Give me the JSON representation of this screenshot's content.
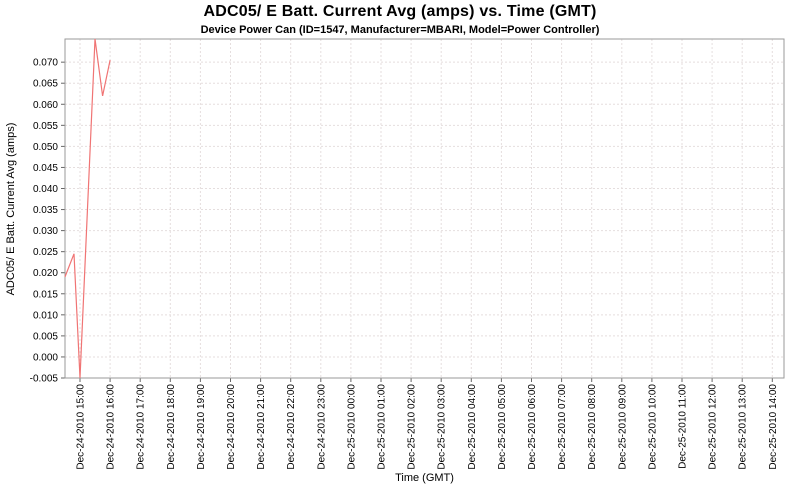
{
  "chart_data": {
    "type": "line",
    "title": "ADC05/ E Batt. Current Avg (amps) vs. Time (GMT)",
    "subtitle": "Device Power Can (ID=1547, Manufacturer=MBARI, Model=Power Controller)",
    "xlabel": "Time (GMT)",
    "ylabel": "ADC05/ E Batt. Current Avg (amps)",
    "ylim": [
      -0.005,
      0.0755
    ],
    "y_ticks": [
      "-0.005",
      "0.000",
      "0.005",
      "0.010",
      "0.015",
      "0.020",
      "0.025",
      "0.030",
      "0.035",
      "0.040",
      "0.045",
      "0.050",
      "0.055",
      "0.060",
      "0.065",
      "0.070"
    ],
    "x_ticks": [
      "Dec-24-2010 15:00",
      "Dec-24-2010 16:00",
      "Dec-24-2010 17:00",
      "Dec-24-2010 18:00",
      "Dec-24-2010 19:00",
      "Dec-24-2010 20:00",
      "Dec-24-2010 21:00",
      "Dec-24-2010 22:00",
      "Dec-24-2010 23:00",
      "Dec-25-2010 00:00",
      "Dec-25-2010 01:00",
      "Dec-25-2010 02:00",
      "Dec-25-2010 03:00",
      "Dec-25-2010 04:00",
      "Dec-25-2010 05:00",
      "Dec-25-2010 06:00",
      "Dec-25-2010 07:00",
      "Dec-25-2010 08:00",
      "Dec-25-2010 09:00",
      "Dec-25-2010 10:00",
      "Dec-25-2010 11:00",
      "Dec-25-2010 12:00",
      "Dec-25-2010 13:00",
      "Dec-25-2010 14:00"
    ],
    "grid": true,
    "legend": "none",
    "series": [
      {
        "name": "ADC05/ E Batt. Current Avg",
        "color": "#f07474",
        "points": [
          {
            "time": "Dec-24-2010 14:30",
            "value": 0.019
          },
          {
            "time": "Dec-24-2010 14:48",
            "value": 0.0245
          },
          {
            "time": "Dec-24-2010 15:00",
            "value": -0.005
          },
          {
            "time": "Dec-24-2010 15:30",
            "value": 0.0755
          },
          {
            "time": "Dec-24-2010 15:45",
            "value": 0.062
          },
          {
            "time": "Dec-24-2010 16:00",
            "value": 0.0705
          }
        ]
      }
    ]
  },
  "colors": {
    "plot_background": "#ffffff",
    "plot_border": "#9a9a9a",
    "gridline": "#e5dede",
    "tick_mark": "#666666",
    "tick_text": "#000000",
    "series_line": "#f07474"
  }
}
